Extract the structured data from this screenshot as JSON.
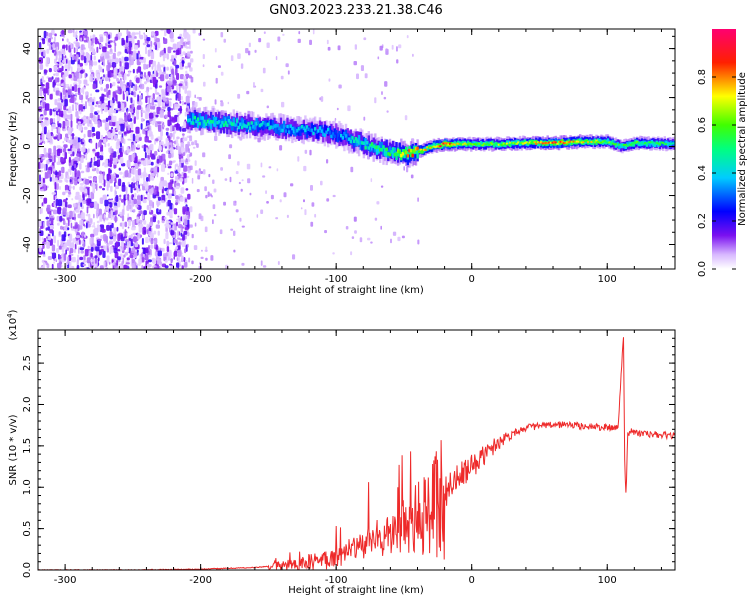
{
  "figure": {
    "title": "GN03.2023.233.21.38.C46"
  },
  "chart_data": [
    {
      "type": "heatmap",
      "xlabel": "Height of straight line (km)",
      "ylabel": "Frequency (Hz)",
      "xlim": [
        -320,
        150
      ],
      "ylim": [
        -50,
        48
      ],
      "x_ticks": [
        -300,
        -200,
        -100,
        0,
        100
      ],
      "y_ticks": [
        -40,
        -20,
        0,
        20,
        40
      ],
      "colorbar": {
        "label": "Normalized spectral amplitude",
        "range": [
          0,
          1
        ],
        "ticks": [
          0.0,
          0.2,
          0.4,
          0.6,
          0.8
        ],
        "colormap": [
          "#ffffff",
          "#6a00f0",
          "#0000ff",
          "#00ffff",
          "#00ff00",
          "#ffff00",
          "#ff0000",
          "#ff0080"
        ]
      },
      "signal_track": {
        "height_km": [
          -210,
          -190,
          -170,
          -150,
          -130,
          -110,
          -100,
          -90,
          -80,
          -70,
          -60,
          -50,
          -45,
          -40,
          -30,
          -20,
          -10,
          0,
          20,
          40,
          60,
          80,
          100,
          110,
          120,
          150
        ],
        "frequency_hz": [
          11,
          10,
          9,
          8,
          7,
          6,
          5,
          3,
          1,
          -1,
          -2,
          -3,
          -3,
          -2,
          0,
          1,
          1,
          1,
          1,
          1.5,
          1.5,
          2,
          2,
          0,
          1.5,
          1
        ],
        "amplitude": [
          0.45,
          0.45,
          0.42,
          0.4,
          0.38,
          0.35,
          0.33,
          0.4,
          0.45,
          0.5,
          0.55,
          0.7,
          0.75,
          0.72,
          0.7,
          0.85,
          0.7,
          0.6,
          0.62,
          0.65,
          0.85,
          0.7,
          0.6,
          0.5,
          0.6,
          0.45
        ]
      },
      "noise_region_km": [
        -320,
        -210
      ]
    },
    {
      "type": "line",
      "xlabel": "Height of straight line (km)",
      "ylabel": "SNR (10 * v/v)",
      "scale_label": "(x10",
      "scale_exp": "4",
      "scale_close": ")",
      "xlim": [
        -320,
        150
      ],
      "ylim": [
        0,
        2.9
      ],
      "x_ticks": [
        -300,
        -200,
        -100,
        0,
        100
      ],
      "y_ticks": [
        0.0,
        0.5,
        1.0,
        1.5,
        2.0,
        2.5
      ],
      "series": [
        {
          "color": "#ee2a2a",
          "x": [
            -320,
            -250,
            -200,
            -160,
            -130,
            -110,
            -100,
            -90,
            -80,
            -70,
            -60,
            -50,
            -40,
            -30,
            -25,
            -20,
            -10,
            0,
            10,
            20,
            30,
            40,
            50,
            60,
            70,
            80,
            90,
            100,
            108,
            112,
            113,
            114,
            115,
            118,
            120,
            130,
            140,
            150
          ],
          "y": [
            0.0,
            0.0,
            0.01,
            0.03,
            0.07,
            0.12,
            0.17,
            0.22,
            0.3,
            0.35,
            0.42,
            0.5,
            0.6,
            0.7,
            0.85,
            0.95,
            1.1,
            1.25,
            1.4,
            1.55,
            1.65,
            1.72,
            1.74,
            1.75,
            1.76,
            1.74,
            1.73,
            1.72,
            1.72,
            2.85,
            1.2,
            0.9,
            1.65,
            1.68,
            1.66,
            1.64,
            1.63,
            1.62
          ]
        }
      ]
    }
  ]
}
